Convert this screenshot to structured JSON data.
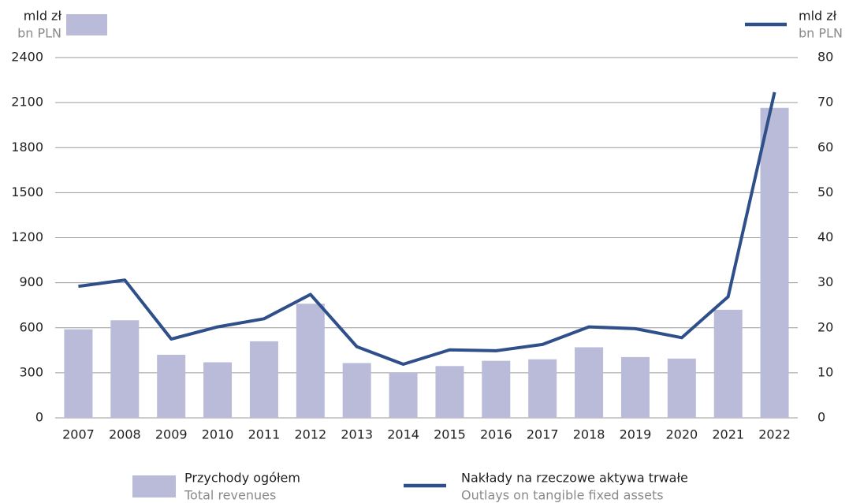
{
  "chart_data": {
    "type": "bar",
    "y_unit": "mld zł",
    "y_unit_en": "bn PLN",
    "y2_unit": "mld zł",
    "y2_unit_en": "bn PLN",
    "categories": [
      "2007",
      "2008",
      "2009",
      "2010",
      "2011",
      "2012",
      "2013",
      "2014",
      "2015",
      "2016",
      "2017",
      "2018",
      "2019",
      "2020",
      "2021",
      "2022"
    ],
    "series": [
      {
        "name": "Przychody ogółem",
        "name_en": "Total revenues",
        "color": "#babbd8",
        "type": "bar",
        "values": [
          590,
          650,
          420,
          370,
          510,
          760,
          365,
          300,
          345,
          380,
          390,
          470,
          405,
          395,
          720,
          2065
        ]
      },
      {
        "name": "Nakłady na rzeczowe aktywa trwałe",
        "name_en": "Outlays on tangible fixed assets",
        "color": "#2f4f8a",
        "type": "line",
        "axis": "y2",
        "values": [
          29.2,
          30.6,
          17.5,
          20.2,
          22,
          27.4,
          15.8,
          11.9,
          15.1,
          14.9,
          16.3,
          20.2,
          19.8,
          17.8,
          26.9,
          72.3
        ]
      }
    ],
    "ylim": [
      0,
      2400
    ],
    "yticks": [
      0,
      300,
      600,
      900,
      1200,
      1500,
      1800,
      2100,
      2400
    ],
    "y2lim": [
      0,
      80
    ],
    "y2ticks": [
      0,
      10,
      20,
      30,
      40,
      50,
      60,
      70,
      80
    ],
    "grid": true
  }
}
